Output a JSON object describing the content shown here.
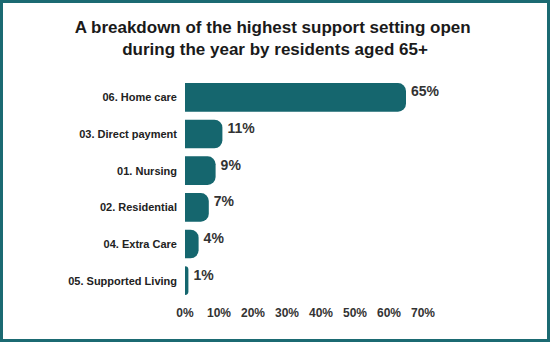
{
  "chart_data": {
    "type": "bar",
    "orientation": "horizontal",
    "title": "A breakdown of the highest support setting open during the year by residents aged 65+",
    "categories": [
      "06. Home care",
      "03. Direct payment",
      "01. Nursing",
      "02. Residential",
      "04. Extra Care",
      "05. Supported Living"
    ],
    "values": [
      65,
      11,
      9,
      7,
      4,
      1
    ],
    "value_labels": [
      "65%",
      "11%",
      "9%",
      "7%",
      "4%",
      "1%"
    ],
    "color": "#15666e",
    "xlim": [
      0,
      70
    ],
    "xticks": [
      {
        "value": 0,
        "label": "0%"
      },
      {
        "value": 10,
        "label": "10%"
      },
      {
        "value": 20,
        "label": "20%"
      },
      {
        "value": 30,
        "label": "30%"
      },
      {
        "value": 40,
        "label": "40%"
      },
      {
        "value": 50,
        "label": "50%"
      },
      {
        "value": 60,
        "label": "60%"
      },
      {
        "value": 70,
        "label": "70%"
      }
    ],
    "grid": false,
    "data_labels": true
  }
}
